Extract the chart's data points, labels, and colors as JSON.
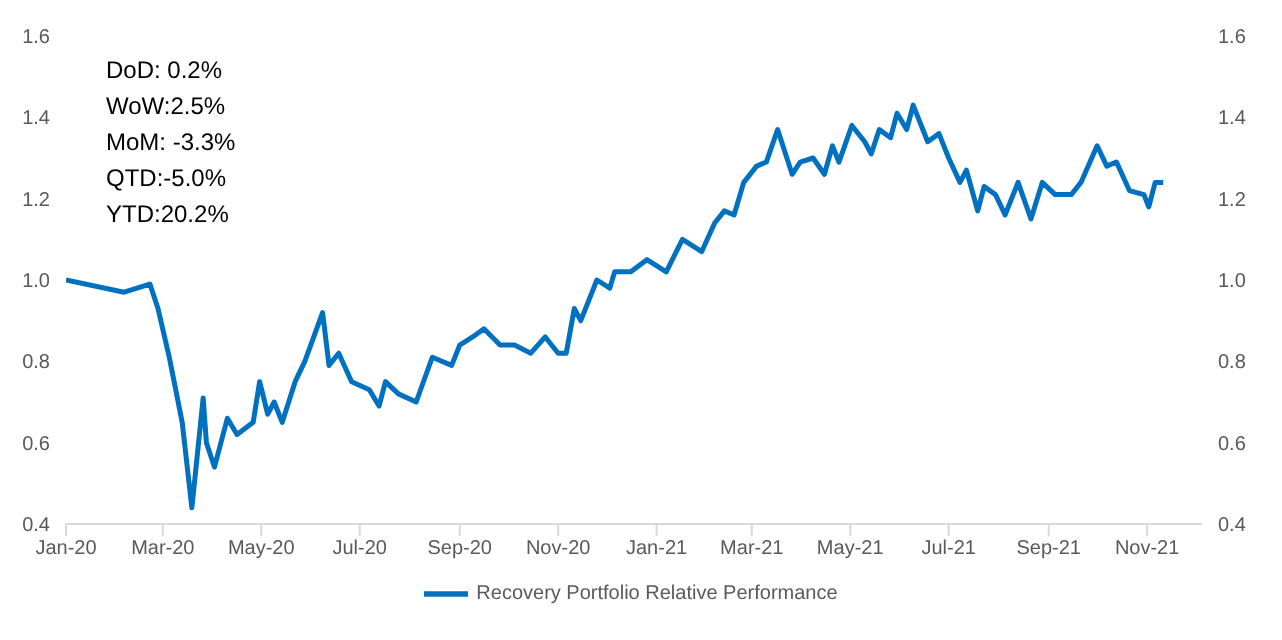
{
  "chart_data": {
    "type": "line",
    "annotations": [
      "DoD: 0.2%",
      "WoW:2.5%",
      "MoM: -3.3%",
      "QTD:-5.0%",
      "YTD:20.2%"
    ],
    "x": [
      "2020-01-01",
      "2020-02-06",
      "2020-02-22",
      "2020-02-27",
      "2020-03-05",
      "2020-03-13",
      "2020-03-19",
      "2020-03-26",
      "2020-03-28",
      "2020-04-02",
      "2020-04-10",
      "2020-04-16",
      "2020-04-26",
      "2020-04-30",
      "2020-05-05",
      "2020-05-09",
      "2020-05-14",
      "2020-05-22",
      "2020-05-28",
      "2020-06-08",
      "2020-06-12",
      "2020-06-18",
      "2020-06-26",
      "2020-07-07",
      "2020-07-13",
      "2020-07-17",
      "2020-07-25",
      "2020-08-05",
      "2020-08-15",
      "2020-08-27",
      "2020-09-01",
      "2020-09-09",
      "2020-09-16",
      "2020-09-26",
      "2020-10-05",
      "2020-10-15",
      "2020-10-24",
      "2020-11-01",
      "2020-11-06",
      "2020-11-11",
      "2020-11-15",
      "2020-11-25",
      "2020-12-03",
      "2020-12-06",
      "2020-12-16",
      "2020-12-26",
      "2021-01-07",
      "2021-01-17",
      "2021-01-29",
      "2021-02-06",
      "2021-02-12",
      "2021-02-18",
      "2021-02-24",
      "2021-03-04",
      "2021-03-10",
      "2021-03-17",
      "2021-03-26",
      "2021-03-31",
      "2021-04-08",
      "2021-04-15",
      "2021-04-20",
      "2021-04-24",
      "2021-05-02",
      "2021-05-10",
      "2021-05-14",
      "2021-05-19",
      "2021-05-26",
      "2021-05-30",
      "2021-06-05",
      "2021-06-09",
      "2021-06-18",
      "2021-06-25",
      "2021-07-01",
      "2021-07-08",
      "2021-07-12",
      "2021-07-19",
      "2021-07-23",
      "2021-07-30",
      "2021-08-05",
      "2021-08-13",
      "2021-08-21",
      "2021-08-28",
      "2021-09-05",
      "2021-09-15",
      "2021-09-21",
      "2021-10-01",
      "2021-10-07",
      "2021-10-13",
      "2021-10-21",
      "2021-10-30",
      "2021-11-02",
      "2021-11-06",
      "2021-11-11"
    ],
    "series": [
      {
        "name": "Recovery Portfolio Relative Performance",
        "color": "#0070c0",
        "values": [
          1.0,
          0.97,
          0.99,
          0.93,
          0.81,
          0.65,
          0.44,
          0.71,
          0.6,
          0.54,
          0.66,
          0.62,
          0.65,
          0.75,
          0.67,
          0.7,
          0.65,
          0.75,
          0.8,
          0.92,
          0.79,
          0.82,
          0.75,
          0.73,
          0.69,
          0.75,
          0.72,
          0.7,
          0.81,
          0.79,
          0.84,
          0.86,
          0.88,
          0.84,
          0.84,
          0.82,
          0.86,
          0.82,
          0.82,
          0.93,
          0.9,
          1.0,
          0.98,
          1.02,
          1.02,
          1.05,
          1.02,
          1.1,
          1.07,
          1.14,
          1.17,
          1.16,
          1.24,
          1.28,
          1.29,
          1.37,
          1.26,
          1.29,
          1.3,
          1.26,
          1.33,
          1.29,
          1.38,
          1.34,
          1.31,
          1.37,
          1.35,
          1.41,
          1.37,
          1.43,
          1.34,
          1.36,
          1.3,
          1.24,
          1.27,
          1.17,
          1.23,
          1.21,
          1.16,
          1.24,
          1.15,
          1.24,
          1.21,
          1.21,
          1.24,
          1.33,
          1.28,
          1.29,
          1.22,
          1.21,
          1.18,
          1.24,
          1.24
        ]
      }
    ],
    "xlim": [
      "2020-01-01",
      "2021-12-05"
    ],
    "xticks": [
      {
        "value": "2020-01-01",
        "label": "Jan-20"
      },
      {
        "value": "2020-03-01",
        "label": "Mar-20"
      },
      {
        "value": "2020-05-01",
        "label": "May-20"
      },
      {
        "value": "2020-07-01",
        "label": "Jul-20"
      },
      {
        "value": "2020-09-01",
        "label": "Sep-20"
      },
      {
        "value": "2020-11-01",
        "label": "Nov-20"
      },
      {
        "value": "2021-01-01",
        "label": "Jan-21"
      },
      {
        "value": "2021-03-01",
        "label": "Mar-21"
      },
      {
        "value": "2021-05-01",
        "label": "May-21"
      },
      {
        "value": "2021-07-01",
        "label": "Jul-21"
      },
      {
        "value": "2021-09-01",
        "label": "Sep-21"
      },
      {
        "value": "2021-11-01",
        "label": "Nov-21"
      }
    ],
    "ylim": [
      0.4,
      1.6
    ],
    "yticks": [
      {
        "value": 0.4,
        "label": "0.4"
      },
      {
        "value": 0.6,
        "label": "0.6"
      },
      {
        "value": 0.8,
        "label": "0.8"
      },
      {
        "value": 1.0,
        "label": "1.0"
      },
      {
        "value": 1.2,
        "label": "1.2"
      },
      {
        "value": 1.4,
        "label": "1.4"
      },
      {
        "value": 1.6,
        "label": "1.6"
      }
    ],
    "y2lim": [
      0.4,
      1.6
    ],
    "y2ticks": [
      {
        "value": 0.4,
        "label": "0.4"
      },
      {
        "value": 0.6,
        "label": "0.6"
      },
      {
        "value": 0.8,
        "label": "0.8"
      },
      {
        "value": 1.0,
        "label": "1.0"
      },
      {
        "value": 1.2,
        "label": "1.2"
      },
      {
        "value": 1.4,
        "label": "1.4"
      },
      {
        "value": 1.6,
        "label": "1.6"
      }
    ],
    "legend": "bottom",
    "marker": "none",
    "line_style": "solid"
  }
}
